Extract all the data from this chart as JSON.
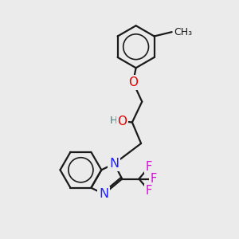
{
  "background_color": "#ebebeb",
  "bond_color": "#1a1a1a",
  "bond_width": 1.6,
  "atom_colors": {
    "O": "#e00000",
    "N": "#2020ff",
    "F": "#e000e0",
    "H": "#408080",
    "C": "#1a1a1a"
  },
  "font_size": 9.5,
  "figsize": [
    3.0,
    3.0
  ],
  "dpi": 100
}
